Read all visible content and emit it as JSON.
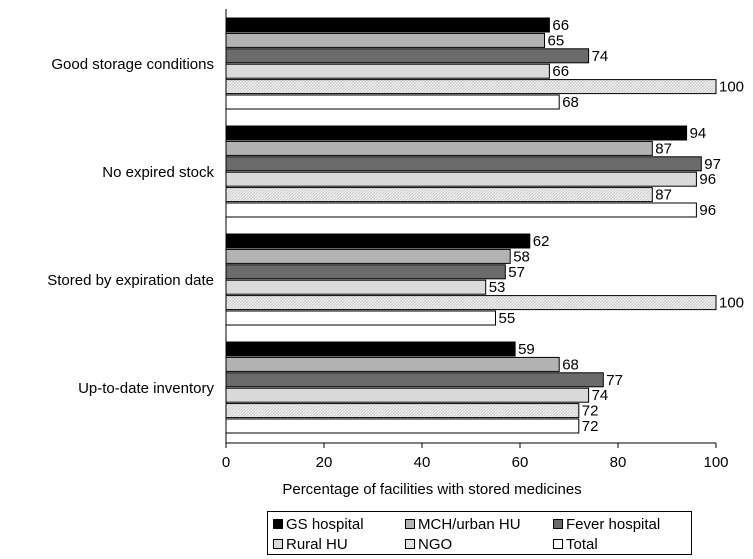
{
  "chart_data": {
    "type": "bar",
    "orientation": "horizontal",
    "categories": [
      "Good storage conditions",
      "No expired stock",
      "Stored by expiration date",
      "Up-to-date inventory"
    ],
    "series": [
      {
        "name": "GS hospital",
        "values": [
          66,
          94,
          62,
          59
        ],
        "color": "#000000"
      },
      {
        "name": "MCH/urban HU",
        "values": [
          65,
          87,
          58,
          68
        ],
        "color": "#b3b3b3"
      },
      {
        "name": "Fever hospital",
        "values": [
          74,
          97,
          57,
          77
        ],
        "color": "#6b6b6b"
      },
      {
        "name": "Rural HU",
        "values": [
          66,
          96,
          53,
          74
        ],
        "color": "#dadada"
      },
      {
        "name": "NGO",
        "values": [
          100,
          87,
          100,
          72
        ],
        "color": "#e6e6e6"
      },
      {
        "name": "Total",
        "values": [
          68,
          96,
          55,
          72
        ],
        "color": "#ffffff"
      }
    ],
    "xlabel": "Percentage of facilities with stored medicines",
    "ylabel": "",
    "xlim": [
      0,
      100
    ],
    "xticks": [
      "0",
      "20",
      "40",
      "60",
      "80",
      "100"
    ],
    "grid": false,
    "legend_position": "bottom"
  }
}
